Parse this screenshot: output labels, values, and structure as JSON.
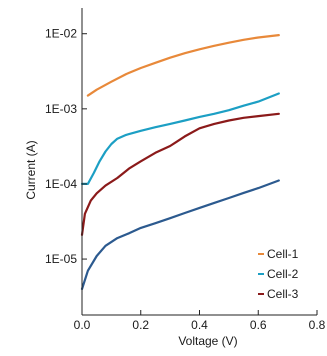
{
  "chart_data": {
    "type": "line",
    "xlabel": "Voltage (V)",
    "ylabel": "Current (A)",
    "xlim": [
      0,
      0.8
    ],
    "ylim": [
      1.8e-06,
      0.022
    ],
    "yscale": "log",
    "x_ticks": [
      0,
      0.2,
      0.4,
      0.6,
      0.8
    ],
    "x_tick_labels": [
      "0.0",
      "0.2",
      "0.4",
      "0.6",
      "0.8"
    ],
    "y_ticks": [
      1e-05,
      0.0001,
      0.001,
      0.01
    ],
    "y_tick_labels": [
      "1E-05",
      "1E-04",
      "1E-03",
      "1E-02"
    ],
    "grid": false,
    "legend_position": "bottom-right",
    "series": [
      {
        "name": "Cell-1",
        "color": "#e8893a",
        "x": [
          0.02,
          0.05,
          0.1,
          0.15,
          0.2,
          0.25,
          0.3,
          0.35,
          0.4,
          0.45,
          0.5,
          0.55,
          0.6,
          0.67
        ],
        "y": [
          0.0015,
          0.0018,
          0.0023,
          0.0029,
          0.0035,
          0.0041,
          0.0048,
          0.0055,
          0.0062,
          0.0069,
          0.0076,
          0.0083,
          0.0089,
          0.0096
        ]
      },
      {
        "name": "Cell-2",
        "color": "#1c9fc4",
        "x": [
          0.0,
          0.02,
          0.04,
          0.06,
          0.08,
          0.1,
          0.12,
          0.15,
          0.2,
          0.25,
          0.3,
          0.35,
          0.4,
          0.45,
          0.5,
          0.55,
          0.6,
          0.67
        ],
        "y": [
          0.0001,
          0.0001,
          0.00014,
          0.0002,
          0.00027,
          0.00034,
          0.0004,
          0.00045,
          0.00051,
          0.00057,
          0.00063,
          0.0007,
          0.00078,
          0.00086,
          0.00096,
          0.0011,
          0.00125,
          0.0016
        ]
      },
      {
        "name": "Cell-3",
        "color": "#8b1a1a",
        "x": [
          0.0,
          0.01,
          0.03,
          0.05,
          0.08,
          0.12,
          0.16,
          0.2,
          0.25,
          0.3,
          0.32,
          0.35,
          0.4,
          0.45,
          0.5,
          0.55,
          0.6,
          0.67
        ],
        "y": [
          2.1e-05,
          4e-05,
          6e-05,
          7.5e-05,
          9.5e-05,
          0.00012,
          0.00016,
          0.0002,
          0.00026,
          0.00032,
          0.00036,
          0.00043,
          0.00055,
          0.00063,
          0.0007,
          0.00076,
          0.0008,
          0.00086
        ]
      },
      {
        "name": "",
        "color": "#2c5a8f",
        "x": [
          0.0,
          0.02,
          0.05,
          0.08,
          0.12,
          0.16,
          0.2,
          0.25,
          0.3,
          0.35,
          0.4,
          0.45,
          0.5,
          0.55,
          0.6,
          0.67
        ],
        "y": [
          4e-06,
          7e-06,
          1.1e-05,
          1.5e-05,
          1.9e-05,
          2.2e-05,
          2.6e-05,
          3e-05,
          3.5e-05,
          4.1e-05,
          4.8e-05,
          5.6e-05,
          6.5e-05,
          7.6e-05,
          8.8e-05,
          0.000111
        ]
      }
    ]
  }
}
